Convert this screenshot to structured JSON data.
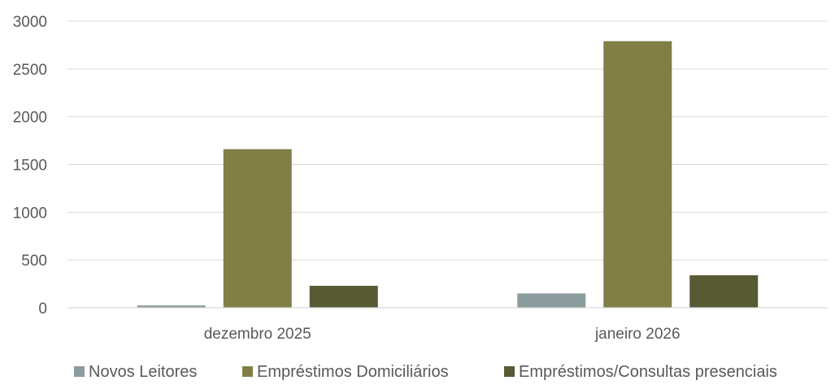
{
  "chart_data": {
    "type": "bar",
    "categories": [
      "dezembro 2025",
      "janeiro 2026"
    ],
    "series": [
      {
        "name": "Novos Leitores",
        "color": "#8c9c9c",
        "values": [
          25,
          150
        ]
      },
      {
        "name": "Empréstimos Domiciliários",
        "color": "#7f7f46",
        "values": [
          1660,
          2790
        ]
      },
      {
        "name": "Empréstimos/Consultas presenciais",
        "color": "#585a33",
        "values": [
          230,
          340
        ]
      }
    ],
    "title": "",
    "xlabel": "",
    "ylabel": "",
    "ylim": [
      0,
      3000
    ],
    "yticks": [
      0,
      500,
      1000,
      1500,
      2000,
      2500,
      3000
    ],
    "grid": true,
    "legend_position": "bottom"
  }
}
